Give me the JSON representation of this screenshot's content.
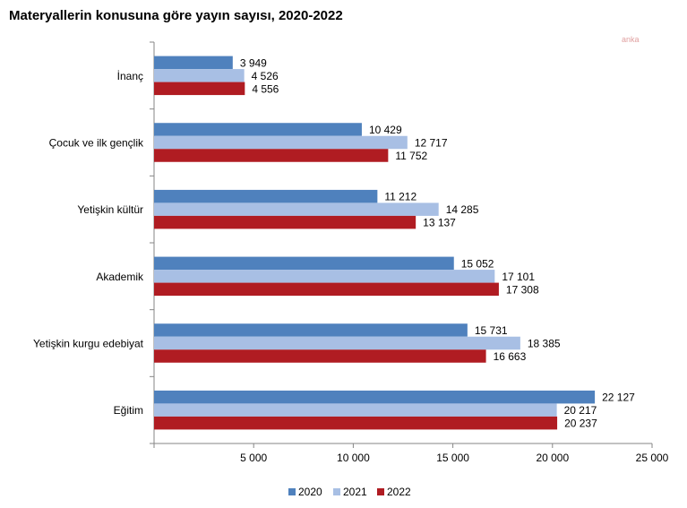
{
  "title": "Materyallerin konusuna göre yayın sayısı, 2020-2022",
  "watermark": "anka",
  "chart_data": {
    "type": "bar",
    "orientation": "horizontal",
    "title": "Materyallerin konusuna göre yayın sayısı, 2020-2022",
    "categories": [
      "İnanç",
      "Çocuk ve ilk gençlik",
      "Yetişkin kültür",
      "Akademik",
      "Yetişkin kurgu edebiyat",
      "Eğitim"
    ],
    "series": [
      {
        "name": "2020",
        "color": "#4f81bd",
        "values": [
          3949,
          10429,
          11212,
          15052,
          15731,
          22127
        ],
        "labels": [
          "3 949",
          "10 429",
          "11 212",
          "15 052",
          "15 731",
          "22 127"
        ]
      },
      {
        "name": "2021",
        "color": "#a8bfe4",
        "values": [
          4526,
          12717,
          14285,
          17101,
          18385,
          20217
        ],
        "labels": [
          "4 526",
          "12 717",
          "14 285",
          "17 101",
          "18 385",
          "20 217"
        ]
      },
      {
        "name": "2022",
        "color": "#b01c22",
        "values": [
          4556,
          11752,
          13137,
          17308,
          16663,
          20237
        ],
        "labels": [
          "4 556",
          "11 752",
          "13 137",
          "17 308",
          "16 663",
          "20 237"
        ]
      }
    ],
    "xlim": [
      0,
      25000
    ],
    "xticks": [
      5000,
      10000,
      15000,
      20000,
      25000
    ],
    "xtick_labels": [
      "5 000",
      "10 000",
      "15 000",
      "20 000",
      "25 000"
    ],
    "xlabel": "",
    "ylabel": "",
    "grid": false,
    "legend_position": "bottom"
  }
}
